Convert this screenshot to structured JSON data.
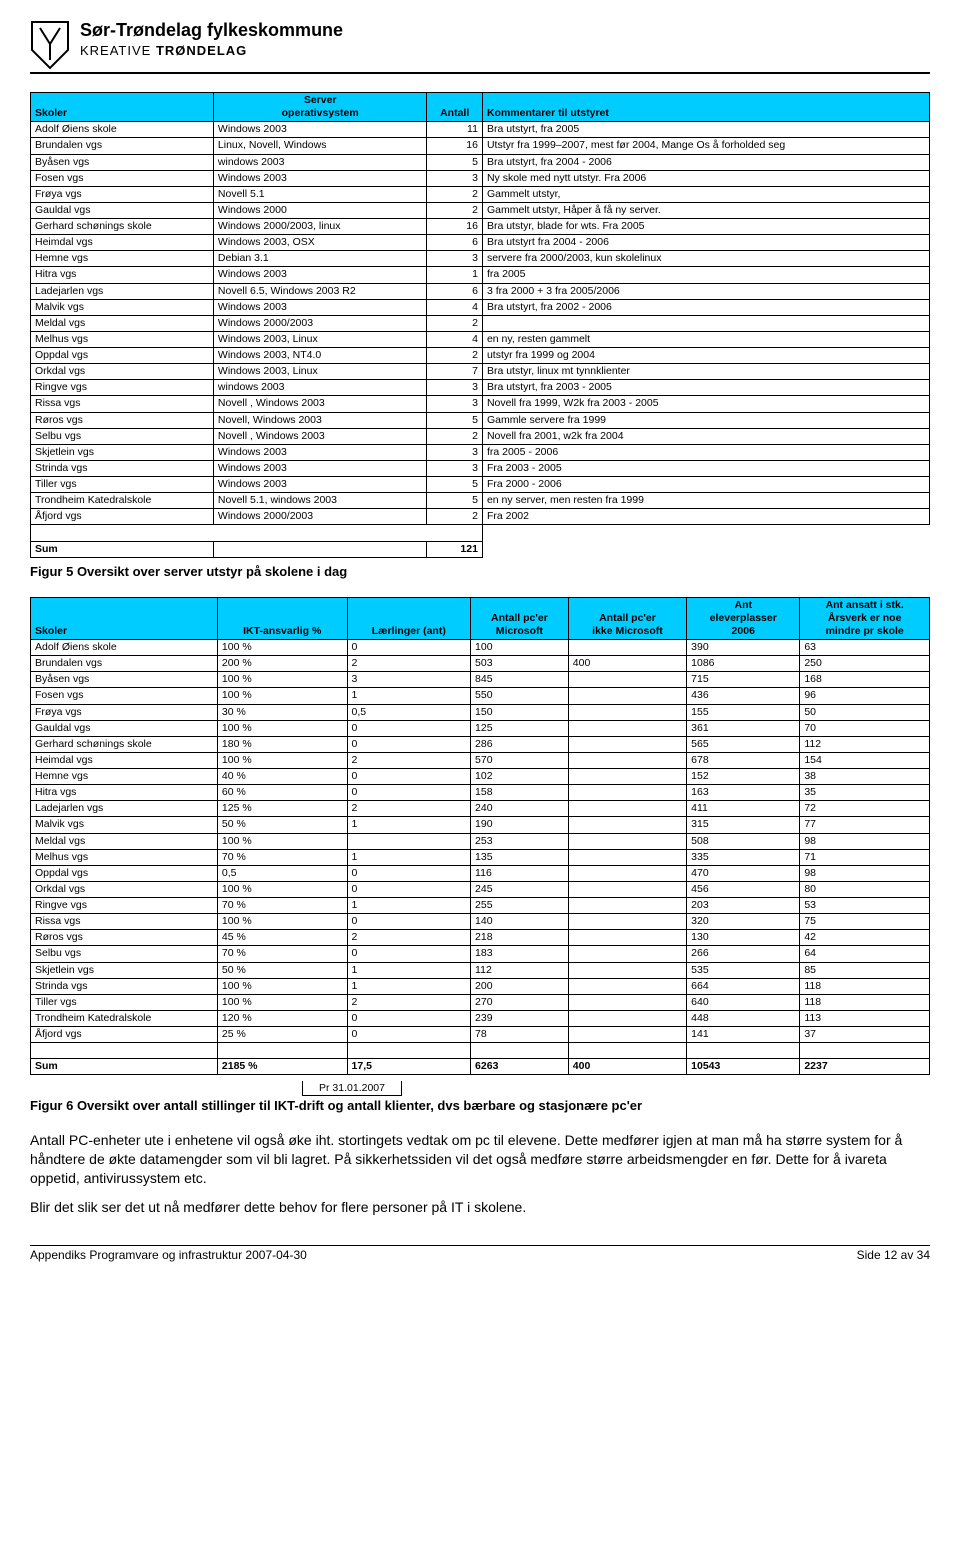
{
  "header": {
    "title": "Sør-Trøndelag fylkeskommune",
    "sub_light": "KREATIVE",
    "sub_bold": "TRØNDELAG"
  },
  "table1": {
    "headers": [
      "Skoler",
      "Server\noperativsystem",
      "Antall",
      "Kommentarer til utstyret"
    ],
    "rows": [
      [
        "Adolf Øiens skole",
        "Windows 2003",
        "11",
        "Bra utstyrt, fra 2005"
      ],
      [
        "Brundalen vgs",
        "Linux, Novell, Windows",
        "16",
        "Utstyr fra 1999–2007, mest før 2004, Mange Os å forholded seg"
      ],
      [
        "Byåsen vgs",
        "windows 2003",
        "5",
        "Bra utstyrt, fra 2004 - 2006"
      ],
      [
        "Fosen vgs",
        "Windows 2003",
        "3",
        "Ny skole med nytt utstyr. Fra 2006"
      ],
      [
        "Frøya vgs",
        "Novell 5.1",
        "2",
        "Gammelt utstyr,"
      ],
      [
        "Gauldal vgs",
        "Windows 2000",
        "2",
        "Gammelt utstyr, Håper å få ny server."
      ],
      [
        "Gerhard schønings skole",
        "Windows 2000/2003, linux",
        "16",
        "Bra utstyr, blade for wts. Fra 2005"
      ],
      [
        "Heimdal vgs",
        "Windows 2003, OSX",
        "6",
        "Bra utstyrt fra 2004 - 2006"
      ],
      [
        "Hemne vgs",
        "Debian 3.1",
        "3",
        "servere fra 2000/2003, kun skolelinux"
      ],
      [
        "Hitra vgs",
        "Windows 2003",
        "1",
        "fra 2005"
      ],
      [
        "Ladejarlen vgs",
        "Novell 6.5, Windows 2003 R2",
        "6",
        "3 fra 2000 + 3 fra 2005/2006"
      ],
      [
        "Malvik vgs",
        "Windows 2003",
        "4",
        "Bra utstyrt, fra 2002 - 2006"
      ],
      [
        "Meldal vgs",
        "Windows 2000/2003",
        "2",
        ""
      ],
      [
        "Melhus vgs",
        "Windows 2003, Linux",
        "4",
        "en ny, resten gammelt"
      ],
      [
        "Oppdal vgs",
        "Windows 2003, NT4.0",
        "2",
        "utstyr fra 1999 og 2004"
      ],
      [
        "Orkdal vgs",
        "Windows 2003, Linux",
        "7",
        "Bra utstyr, linux mt tynnklienter"
      ],
      [
        "Ringve vgs",
        "windows 2003",
        "3",
        "Bra utstyrt, fra 2003 - 2005"
      ],
      [
        "Rissa vgs",
        "Novell , Windows 2003",
        "3",
        "Novell fra 1999, W2k fra 2003 - 2005"
      ],
      [
        "Røros vgs",
        "Novell, Windows 2003",
        "5",
        "Gammle servere fra 1999"
      ],
      [
        "Selbu vgs",
        "Novell , Windows 2003",
        "2",
        "Novell fra 2001, w2k fra 2004"
      ],
      [
        "Skjetlein vgs",
        "Windows 2003",
        "3",
        "fra 2005 - 2006"
      ],
      [
        "Strinda vgs",
        "Windows 2003",
        "3",
        "Fra 2003 - 2005"
      ],
      [
        "Tiller vgs",
        "Windows 2003",
        "5",
        "Fra 2000 - 2006"
      ],
      [
        "Trondheim Katedralskole",
        "Novell 5.1, windows 2003",
        "5",
        "en ny server, men resten fra 1999"
      ],
      [
        "Åfjord vgs",
        "Windows 2000/2003",
        "2",
        "Fra 2002"
      ]
    ],
    "sum_label": "Sum",
    "sum_value": "121",
    "caption": "Figur 5 Oversikt over server utstyr på skolene i dag"
  },
  "table2": {
    "headers": [
      "Skoler",
      "IKT-ansvarlig %",
      "Lærlinger (ant)",
      "Antall  pc'er\nMicrosoft",
      "Antall pc'er\nikke Microsoft",
      "Ant\neleverplasser\n2006",
      "Ant ansatt  i stk.\nÅrsverk er noe\nmindre pr skole"
    ],
    "rows": [
      [
        "Adolf Øiens skole",
        "100 %",
        "0",
        "100",
        "",
        "390",
        "63"
      ],
      [
        "Brundalen vgs",
        "200 %",
        "2",
        "503",
        "400",
        "1086",
        "250"
      ],
      [
        "Byåsen vgs",
        "100 %",
        "3",
        "845",
        "",
        "715",
        "168"
      ],
      [
        "Fosen vgs",
        "100 %",
        "1",
        "550",
        "",
        "436",
        "96"
      ],
      [
        "Frøya vgs",
        "30 %",
        "0,5",
        "150",
        "",
        "155",
        "50"
      ],
      [
        "Gauldal vgs",
        "100 %",
        "0",
        "125",
        "",
        "361",
        "70"
      ],
      [
        "Gerhard schønings skole",
        "180 %",
        "0",
        "286",
        "",
        "565",
        "112"
      ],
      [
        "Heimdal vgs",
        "100 %",
        "2",
        "570",
        "",
        "678",
        "154"
      ],
      [
        "Hemne vgs",
        "40 %",
        "0",
        "102",
        "",
        "152",
        "38"
      ],
      [
        "Hitra vgs",
        "60 %",
        "0",
        "158",
        "",
        "163",
        "35"
      ],
      [
        "Ladejarlen vgs",
        "125 %",
        "2",
        "240",
        "",
        "411",
        "72"
      ],
      [
        "Malvik vgs",
        "50 %",
        "1",
        "190",
        "",
        "315",
        "77"
      ],
      [
        "Meldal vgs",
        "100 %",
        "",
        "253",
        "",
        "508",
        "98"
      ],
      [
        "Melhus vgs",
        "70 %",
        "1",
        "135",
        "",
        "335",
        "71"
      ],
      [
        "Oppdal vgs",
        "0,5",
        "0",
        "116",
        "",
        "470",
        "98"
      ],
      [
        "Orkdal vgs",
        "100 %",
        "0",
        "245",
        "",
        "456",
        "80"
      ],
      [
        "Ringve vgs",
        "70 %",
        "1",
        "255",
        "",
        "203",
        "53"
      ],
      [
        "Rissa vgs",
        "100 %",
        "0",
        "140",
        "",
        "320",
        "75"
      ],
      [
        "Røros vgs",
        "45 %",
        "2",
        "218",
        "",
        "130",
        "42"
      ],
      [
        "Selbu vgs",
        "70 %",
        "0",
        "183",
        "",
        "266",
        "64"
      ],
      [
        "Skjetlein vgs",
        "50 %",
        "1",
        "112",
        "",
        "535",
        "85"
      ],
      [
        "Strinda vgs",
        "100 %",
        "1",
        "200",
        "",
        "664",
        "118"
      ],
      [
        "Tiller vgs",
        "100 %",
        "2",
        "270",
        "",
        "640",
        "118"
      ],
      [
        "Trondheim Katedralskole",
        "120 %",
        "0",
        "239",
        "",
        "448",
        "113"
      ],
      [
        "Åfjord vgs",
        "25 %",
        "0",
        "78",
        "",
        "141",
        "37"
      ]
    ],
    "sum": [
      "Sum",
      "2185 %",
      "17,5",
      "6263",
      "400",
      "10543",
      "2237"
    ],
    "pr_date": "Pr 31.01.2007",
    "caption": "Figur 6 Oversikt over antall stillinger til IKT-drift og antall klienter, dvs bærbare og stasjonære pc'er"
  },
  "para1": "Antall PC-enheter ute i enhetene vil også øke iht. stortingets vedtak om pc til elevene. Dette medfører igjen at man må ha større system for å håndtere de økte datamengder som vil bli lagret. På sikkerhetssiden vil det også medføre større arbeidsmengder en før. Dette for å ivareta oppetid, antivirussystem etc.",
  "para2": "Blir det slik ser det ut nå medfører dette behov for flere personer på IT i skolene.",
  "footer": {
    "left": "Appendiks Programvare og infrastruktur 2007-04-30",
    "right": "Side 12 av 34"
  }
}
